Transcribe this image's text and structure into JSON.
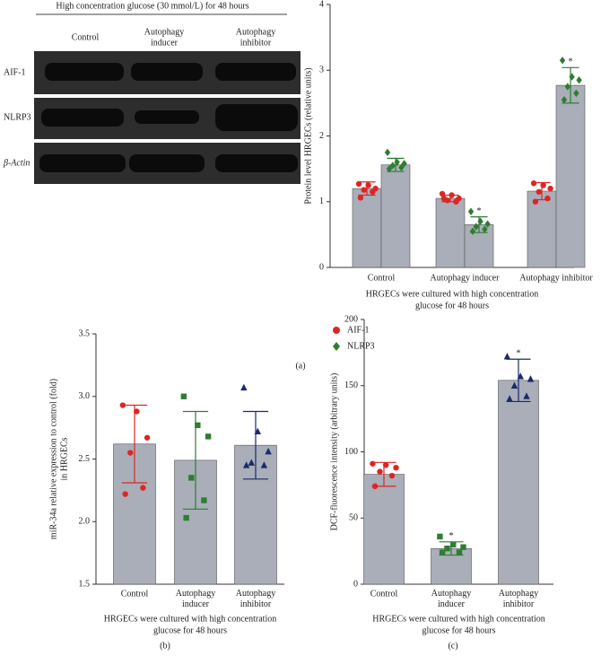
{
  "blot": {
    "title": "High concentration glucose (30 mmol/L) for 48 hours",
    "columns": [
      [
        "Control"
      ],
      [
        "Autophagy",
        "inducer"
      ],
      [
        "Autophagy",
        "inhibitor"
      ]
    ],
    "rows": [
      "AIF-1",
      "NLRP3",
      "β-Actin"
    ]
  },
  "panel_labels": [
    "(a)",
    "(b)",
    "(c)"
  ],
  "chart_data": [
    {
      "type": "bar",
      "ylabel": [
        "Protein level HRGECs (relative units)"
      ],
      "xlabel": [
        "HRGECs were cultured with high concentration",
        "glucose for 48 hours"
      ],
      "categories": [
        "Control",
        "Autophagy inducer",
        "Autophagy inhibitor"
      ],
      "bar_color": "#a9aeb8",
      "legend": "below",
      "series": [
        {
          "name": "AIF-1",
          "color": "#e02424",
          "marker": "circle",
          "values": [
            1.2,
            1.05,
            1.16
          ],
          "errors": [
            0.1,
            0.05,
            0.13
          ],
          "points": [
            [
              1.27,
              1.25,
              1.2,
              1.18,
              1.15,
              1.06
            ],
            [
              1.12,
              1.1,
              1.05,
              1.02,
              1.0,
              1.05
            ],
            [
              1.28,
              1.25,
              1.2,
              1.15,
              1.05,
              1.0
            ]
          ]
        },
        {
          "name": "NLRP3",
          "color": "#2e7d32",
          "marker": "diamond",
          "values": [
            1.56,
            0.65,
            2.77
          ],
          "errors": [
            0.1,
            0.12,
            0.27
          ],
          "points": [
            [
              1.75,
              1.6,
              1.58,
              1.55,
              1.52,
              1.5
            ],
            [
              0.85,
              0.7,
              0.66,
              0.62,
              0.58,
              0.55
            ],
            [
              3.15,
              2.9,
              2.85,
              2.75,
              2.65,
              2.55
            ]
          ],
          "significance": [
            null,
            "*",
            "*"
          ]
        }
      ],
      "ylim": [
        0,
        4
      ],
      "yticks": [
        0,
        1,
        2,
        3,
        4
      ]
    },
    {
      "type": "bar",
      "ylabel": [
        "miR-34a relative expression to control (fold)",
        "in HRGECs"
      ],
      "xlabel": [
        "HRGECs were cultured with high concentration",
        "glucose for 48 hours"
      ],
      "categories": [
        "Control",
        "Autophagy inducer",
        "Autophagy inhibitor"
      ],
      "bar_color": "#a9aeb8",
      "colors": [
        "#e02424",
        "#2e7d32",
        "#1a2a6c"
      ],
      "markers": [
        "circle",
        "square",
        "triangle"
      ],
      "values": [
        2.62,
        2.49,
        2.61
      ],
      "errors": [
        0.31,
        0.39,
        0.27
      ],
      "points": [
        [
          2.93,
          2.88,
          2.67,
          2.55,
          2.27,
          2.22
        ],
        [
          3.0,
          2.77,
          2.68,
          2.35,
          2.17,
          2.03
        ],
        [
          3.07,
          2.72,
          2.56,
          2.47,
          2.45,
          2.45
        ]
      ],
      "ylim": [
        1.5,
        3.5
      ],
      "yticks": [
        {
          "value": 1.5,
          "label": "1.5"
        },
        {
          "value": 2,
          "label": "2.0"
        },
        {
          "value": 2.5,
          "label": "2.5"
        },
        {
          "value": 3,
          "label": "3.0"
        },
        {
          "value": 3.5,
          "label": "3.5"
        }
      ]
    },
    {
      "type": "bar",
      "ylabel": [
        "DCF-fluorescence intensity (arbitrary units)"
      ],
      "xlabel": [
        "HRGECs were cultured with high concentration",
        "glucose for 48 hours"
      ],
      "categories": [
        "Control",
        "Autophagy inducer",
        "Autophagy inhibitor"
      ],
      "bar_color": "#a9aeb8",
      "colors": [
        "#e02424",
        "#2e7d32",
        "#1a2a6c"
      ],
      "markers": [
        "circle",
        "square",
        "triangle"
      ],
      "values": [
        83,
        27,
        154
      ],
      "errors": [
        9,
        5,
        16
      ],
      "points": [
        [
          91,
          90,
          88,
          85,
          82,
          74
        ],
        [
          36,
          30,
          28,
          27,
          24,
          24
        ],
        [
          172,
          157,
          155,
          150,
          142,
          140
        ]
      ],
      "significance": [
        null,
        "*",
        "*"
      ],
      "ylim": [
        0,
        200
      ],
      "yticks": [
        0,
        50,
        100,
        150,
        200
      ]
    }
  ]
}
